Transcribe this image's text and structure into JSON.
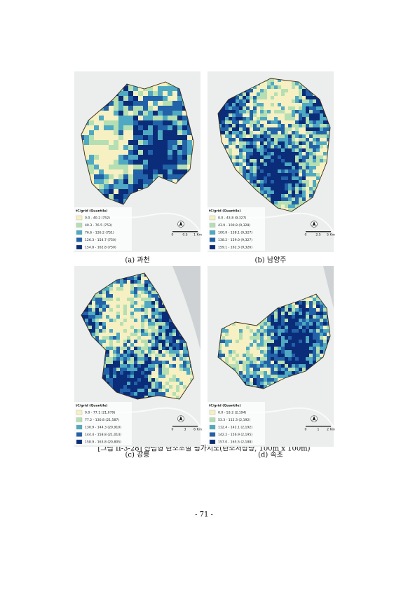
{
  "figures": [
    {
      "caption": "(a) 과천",
      "legend": {
        "title": "tC/grid (Quantile)",
        "items": [
          "0.0 - 40.2 (752)",
          "40.3 - 76.5 (753)",
          "76.6 - 126.2 (751)",
          "126.3 - 154.7 (750)",
          "154.8 - 162.8 (750)"
        ]
      },
      "scale": [
        "0",
        "0.5",
        "1 Km"
      ]
    },
    {
      "caption": "(b) 남양주",
      "legend": {
        "title": "tC/grid (Quantile)",
        "items": [
          "0.0 - 43.8 (9,327)",
          "43.9 - 100.8 (9,328)",
          "100.9 - 138.1 (9,327)",
          "138.2 - 159.0 (9,327)",
          "159.1 - 162.3 (9,326)"
        ]
      },
      "scale": [
        "0",
        "2.5",
        "5 Km"
      ]
    },
    {
      "caption": "(c) 강릉",
      "legend": {
        "title": "tC/grid (Quantile)",
        "items": [
          "0.0 - 77.1 (21,079)",
          "77.2 - 130.8 (21,587)",
          "130.9 - 144.3 (20,910)",
          "144.4 - 158.8 (21,014)",
          "158.9 - 163.8 (20,805)"
        ]
      },
      "scale": [
        "0",
        "3",
        "6 Km"
      ]
    },
    {
      "caption": "(d) 속초",
      "legend": {
        "title": "tC/grid (Quantile)",
        "items": [
          "0.0 - 53.2 (2,194)",
          "53.3 - 112.3 (2,192)",
          "112.4 - 142.1 (2,192)",
          "142.2 - 156.9 (2,195)",
          "157.0 - 165.5 (2,188)"
        ]
      },
      "scale": [
        "0",
        "1",
        "2 Km"
      ]
    }
  ],
  "colors": [
    "#f6f0c2",
    "#b5dfb2",
    "#4fa9c2",
    "#2262a8",
    "#0b2c78"
  ],
  "figure_caption": "[그림 II-3-28] 산림형 탄소조절 평가지도(탄소저장량, 100m x 100m)",
  "page_number": "- 71 -"
}
